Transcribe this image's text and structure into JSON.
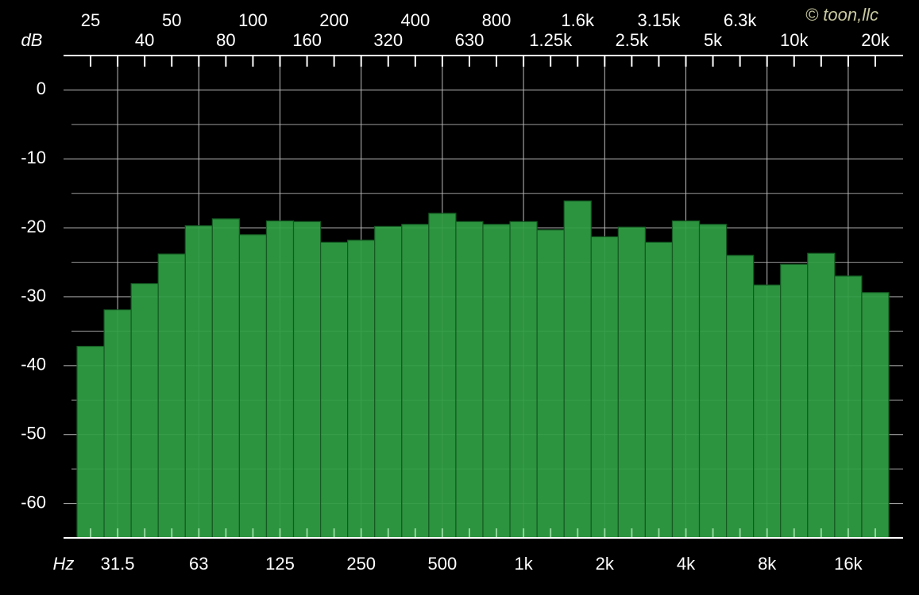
{
  "chart_data": {
    "type": "bar",
    "y_label": "dB",
    "x_label": "Hz",
    "watermark": "© toon,llc",
    "categories": [
      "25",
      "31.5",
      "40",
      "50",
      "63",
      "80",
      "100",
      "125",
      "160",
      "200",
      "250",
      "320",
      "400",
      "500",
      "630",
      "800",
      "1k",
      "1.25k",
      "1.6k",
      "2k",
      "2.5k",
      "3.15k",
      "4k",
      "5k",
      "6.3k",
      "8k",
      "10k",
      null,
      "16k",
      "20k"
    ],
    "values": [
      -37.2,
      -31.9,
      -28.1,
      -23.8,
      -19.7,
      -18.7,
      -21.0,
      -19.0,
      -19.1,
      -22.1,
      -21.8,
      -19.8,
      -19.5,
      -17.9,
      -19.1,
      -19.5,
      -19.1,
      -20.3,
      -16.1,
      -21.3,
      -19.9,
      -22.1,
      -19.0,
      -19.5,
      -24.0,
      -28.3,
      -25.3,
      -23.7,
      -27.0,
      -29.4
    ],
    "color": "#2f9e44",
    "ylim": [
      -65,
      5
    ],
    "yticks": [
      0,
      -10,
      -20,
      -30,
      -40,
      -50,
      -60
    ],
    "yticks_minor": [
      -5,
      -15,
      -25,
      -35,
      -45,
      -55
    ],
    "grid": true
  }
}
